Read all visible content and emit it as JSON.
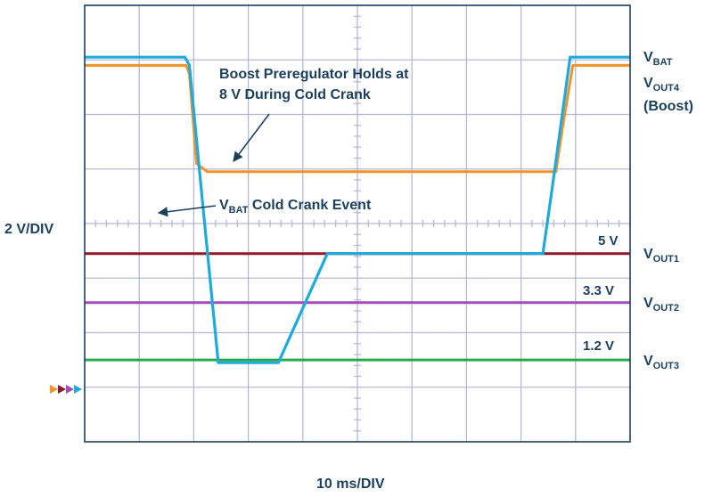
{
  "chart_data": {
    "type": "line",
    "x_scale_label": "10 ms/DIV",
    "y_scale_label": "2 V/DIV",
    "x_divisions": 10,
    "y_divisions": 8,
    "xlim": [
      0,
      100
    ],
    "ylim": [
      -8,
      8
    ],
    "grid": true,
    "annotations": {
      "boost_line1": "Boost Preregulator Holds at",
      "boost_line2": "8 V During Cold Crank",
      "vbat_event_main": "V",
      "vbat_event_sub": "BAT",
      "vbat_event_rest": " Cold Crank Event",
      "level_5v": "5 V",
      "level_3v3": "3.3 V",
      "level_1v2": "1.2 V"
    },
    "series": [
      {
        "label_main": "V",
        "label_sub": "BAT",
        "label_extra": "",
        "color": "#1eaadc",
        "points": [
          [
            0,
            6.1
          ],
          [
            18.4,
            6.1
          ],
          [
            19.2,
            5.8
          ],
          [
            21.5,
            1.0
          ],
          [
            24.5,
            -5.1
          ],
          [
            35.5,
            -5.1
          ],
          [
            44.5,
            -1.1
          ],
          [
            84,
            -1.1
          ],
          [
            85.5,
            1.0
          ],
          [
            89,
            6.1
          ],
          [
            100,
            6.1
          ]
        ]
      },
      {
        "label_main": "V",
        "label_sub": "OUT4",
        "label_extra": "(Boost)",
        "color": "#f0932b",
        "points": [
          [
            0,
            5.8
          ],
          [
            18.6,
            5.8
          ],
          [
            19.2,
            5.5
          ],
          [
            20.5,
            2.2
          ],
          [
            22.5,
            1.9
          ],
          [
            86.4,
            1.9
          ],
          [
            87.6,
            3.5
          ],
          [
            89.5,
            5.8
          ],
          [
            100,
            5.8
          ]
        ]
      },
      {
        "label_main": "V",
        "label_sub": "OUT1",
        "label_extra": "",
        "color": "#8b1a2c",
        "points": [
          [
            0,
            -1.1
          ],
          [
            100,
            -1.1
          ]
        ]
      },
      {
        "label_main": "V",
        "label_sub": "OUT2",
        "label_extra": "",
        "color": "#a24db7",
        "points": [
          [
            0,
            -2.9
          ],
          [
            100,
            -2.9
          ]
        ]
      },
      {
        "label_main": "V",
        "label_sub": "OUT3",
        "label_extra": "",
        "color": "#27a94a",
        "points": [
          [
            0,
            -5.0
          ],
          [
            100,
            -5.0
          ]
        ]
      }
    ],
    "ground_markers": [
      "#f0932b",
      "#8b1a2c",
      "#a24db7",
      "#1eaadc"
    ]
  }
}
